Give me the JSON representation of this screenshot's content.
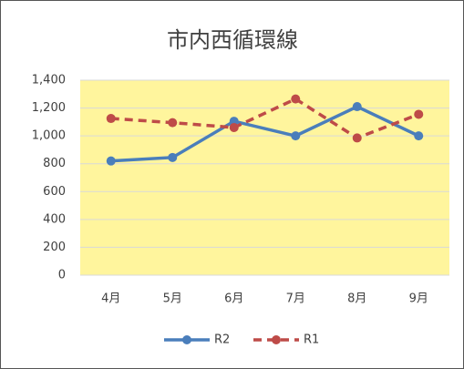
{
  "chart_data": {
    "type": "line",
    "title": "市内西循環線",
    "categories": [
      "4月",
      "5月",
      "6月",
      "7月",
      "8月",
      "9月"
    ],
    "series": [
      {
        "name": "R2",
        "color": "#4a7ebb",
        "dashed": false,
        "values": [
          820,
          845,
          1105,
          1000,
          1210,
          1000
        ]
      },
      {
        "name": "R1",
        "color": "#be4b48",
        "dashed": true,
        "values": [
          1125,
          1095,
          1060,
          1265,
          985,
          1155
        ]
      }
    ],
    "ylim": [
      0,
      1400
    ],
    "yticks": [
      0,
      200,
      400,
      600,
      800,
      {
        "value": 1000,
        "label": "1,000"
      },
      {
        "value": 1200,
        "label": "1,200"
      },
      {
        "value": 1400,
        "label": "1,400"
      }
    ],
    "grid": true,
    "plot_background": "#fff59d",
    "legend": "bottom"
  }
}
